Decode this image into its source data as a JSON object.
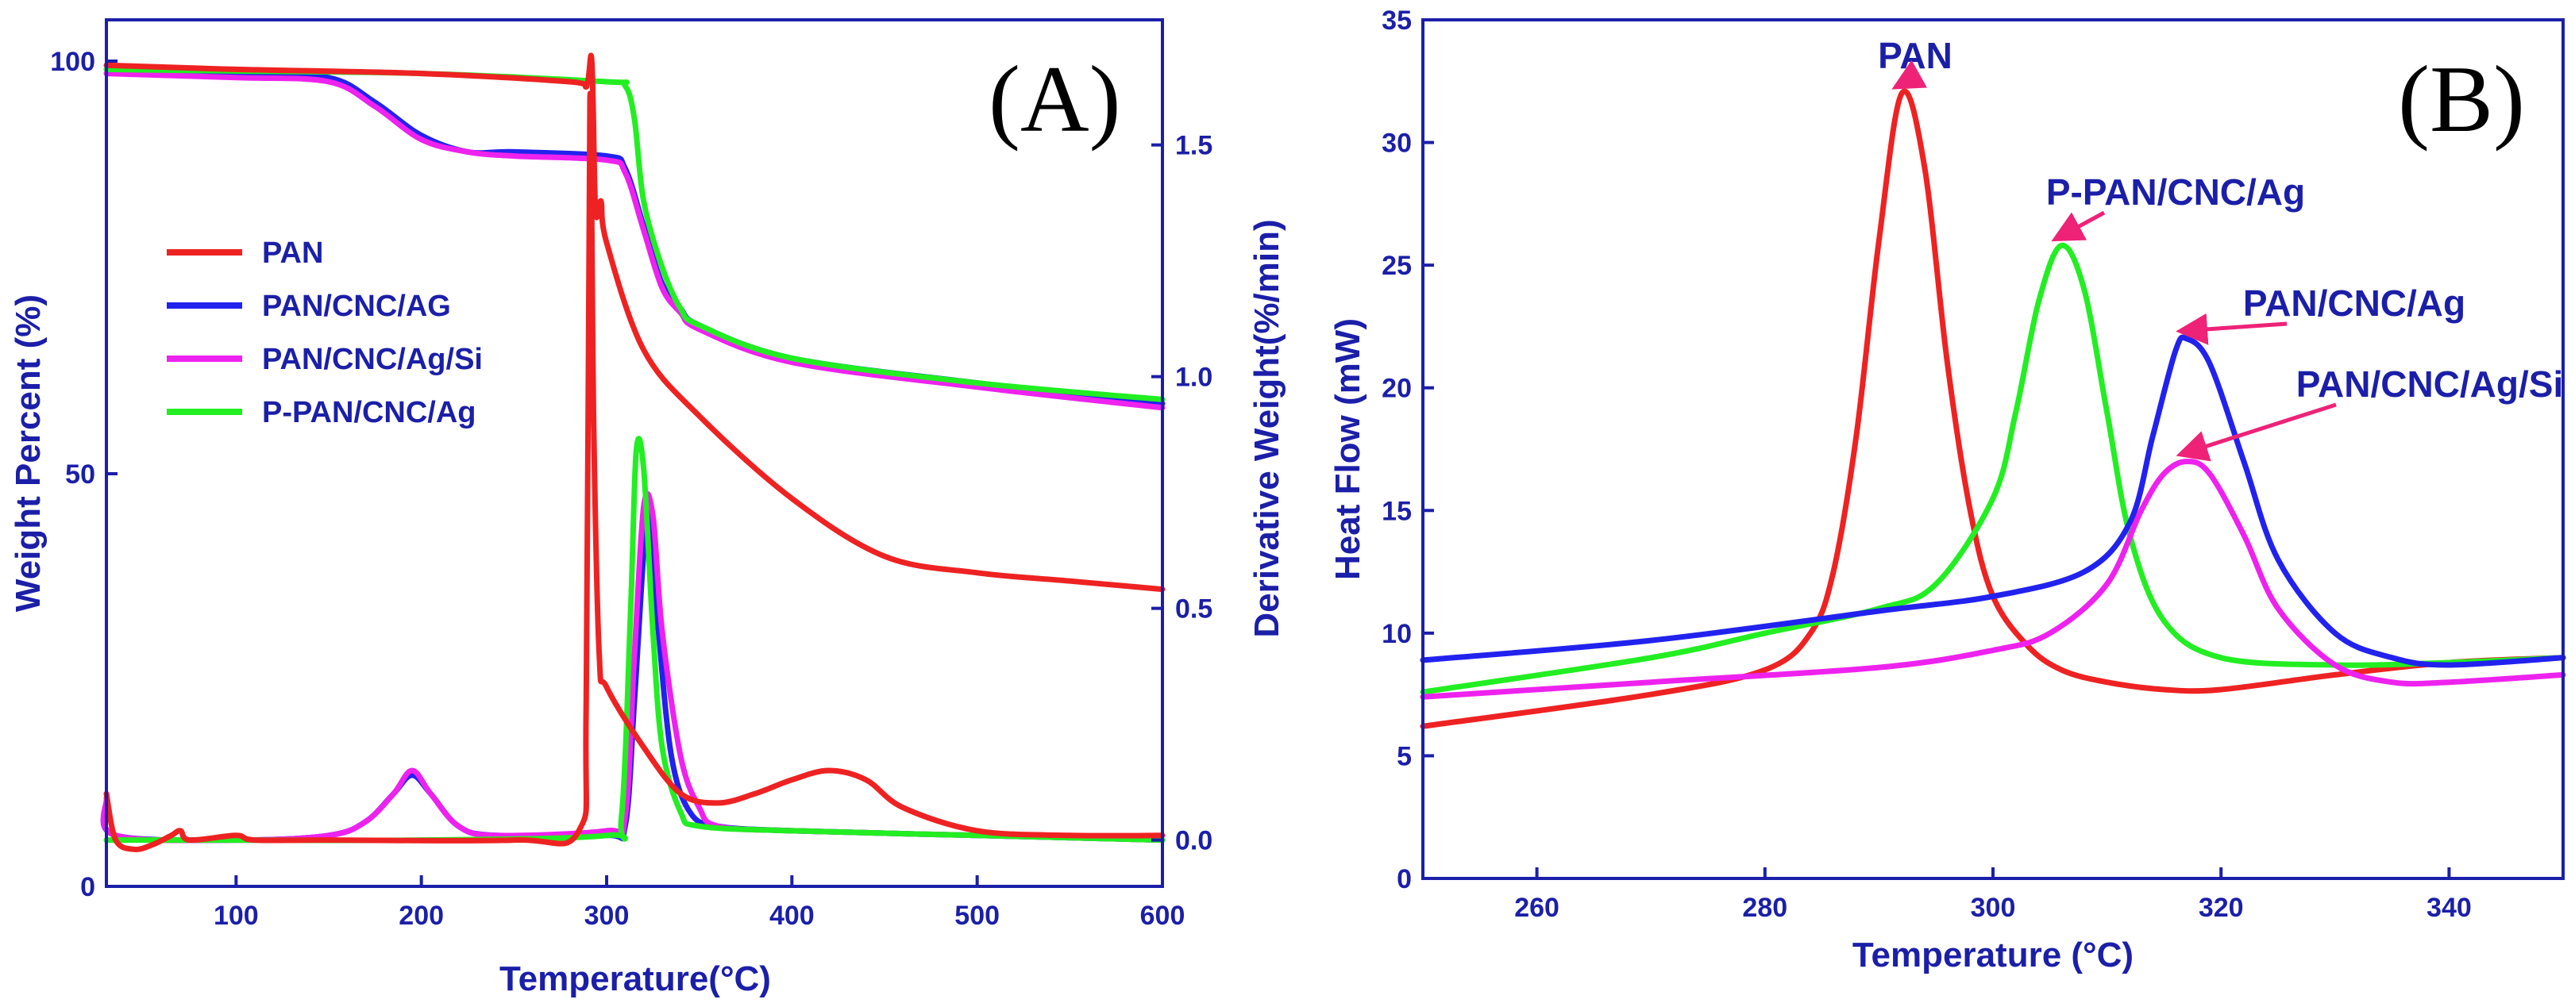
{
  "colors": {
    "PAN": "#ee2222",
    "PAN/CNC/AG": "#2222ee",
    "PAN/CNC/Ag": "#2222ee",
    "PAN/CNC/Ag/Si": "#ee22ee",
    "P-PAN/CNC/Ag": "#22ee22",
    "axis": "#1b1fa8",
    "arrow": "#ee2277"
  },
  "chart_data": [
    {
      "type": "line",
      "panel_label": "(A)",
      "xlabel": "Temperature(°C)",
      "ylabel": "Weight Percent (%)",
      "y2label": "Derivative Weight(%/min)",
      "xlim": [
        30,
        600
      ],
      "ylim": [
        0,
        105
      ],
      "y2lim": [
        -0.1,
        1.77
      ],
      "xticks": [
        {
          "v": 100,
          "l": "100"
        },
        {
          "v": 200,
          "l": "200"
        },
        {
          "v": 300,
          "l": "300"
        },
        {
          "v": 400,
          "l": "400"
        },
        {
          "v": 500,
          "l": "500"
        },
        {
          "v": 600,
          "l": "600"
        }
      ],
      "yticks": [
        {
          "v": 0,
          "l": "0"
        },
        {
          "v": 50,
          "l": "50"
        },
        {
          "v": 100,
          "l": "100"
        }
      ],
      "y2ticks": [
        {
          "v": 0.0,
          "l": "0.0"
        },
        {
          "v": 0.5,
          "l": "0.5"
        },
        {
          "v": 1.0,
          "l": "1.0"
        },
        {
          "v": 1.5,
          "l": "1.5"
        }
      ],
      "legend": [
        "PAN",
        "PAN/CNC/AG",
        "PAN/CNC/Ag/Si",
        "P-PAN/CNC/Ag"
      ],
      "weight_series": [
        {
          "name": "PAN",
          "x": [
            30,
            100,
            200,
            280,
            289,
            292,
            294,
            297,
            300,
            320,
            350,
            400,
            450,
            500,
            550,
            600
          ],
          "y": [
            99.5,
            99,
            98.5,
            97.5,
            97,
            100,
            82,
            83,
            78,
            65,
            57,
            47,
            40,
            38,
            37,
            36
          ]
        },
        {
          "name": "PAN/CNC/AG",
          "x": [
            30,
            100,
            150,
            175,
            200,
            225,
            250,
            300,
            310,
            320,
            330,
            340,
            350,
            400,
            500,
            600
          ],
          "y": [
            99,
            98.5,
            98,
            95,
            91,
            89,
            89,
            88.5,
            87,
            80,
            73,
            70,
            68,
            64,
            61,
            58.5
          ]
        },
        {
          "name": "PAN/CNC/Ag/Si",
          "x": [
            30,
            100,
            150,
            175,
            200,
            225,
            250,
            300,
            310,
            320,
            330,
            340,
            350,
            400,
            500,
            600
          ],
          "y": [
            98.5,
            98,
            97.5,
            94.5,
            90.5,
            89,
            88.5,
            88,
            86.5,
            79.5,
            72.5,
            69.5,
            67.5,
            63.5,
            60.5,
            58
          ]
        },
        {
          "name": "P-PAN/CNC/Ag",
          "x": [
            30,
            100,
            200,
            300,
            310,
            315,
            320,
            330,
            340,
            350,
            400,
            500,
            600
          ],
          "y": [
            99,
            98.8,
            98.5,
            97.5,
            97,
            93,
            83,
            75,
            70,
            68,
            64,
            61,
            59
          ]
        }
      ],
      "derivative_series": [
        {
          "name": "PAN",
          "x": [
            30,
            35,
            45,
            55,
            65,
            70,
            75,
            100,
            110,
            150,
            250,
            285,
            289,
            291,
            293,
            296,
            300,
            320,
            340,
            360,
            380,
            400,
            420,
            440,
            460,
            500,
            550,
            600
          ],
          "y": [
            0.1,
            0,
            -0.02,
            -0.01,
            0.01,
            0.02,
            0,
            0.01,
            0,
            0,
            0,
            0.02,
            0.3,
            1.6,
            0.9,
            0.4,
            0.33,
            0.2,
            0.1,
            0.08,
            0.1,
            0.13,
            0.15,
            0.13,
            0.07,
            0.02,
            0.01,
            0.01
          ]
        },
        {
          "name": "PAN/CNC/AG",
          "x": [
            30,
            35,
            100,
            150,
            170,
            185,
            195,
            205,
            220,
            240,
            300,
            310,
            315,
            320,
            323,
            328,
            335,
            345,
            360,
            400,
            500,
            600
          ],
          "y": [
            0.08,
            0.01,
            0,
            0.01,
            0.04,
            0.1,
            0.14,
            0.1,
            0.03,
            0.01,
            0.01,
            0.03,
            0.3,
            0.62,
            0.7,
            0.45,
            0.18,
            0.06,
            0.03,
            0.02,
            0.01,
            0
          ]
        },
        {
          "name": "PAN/CNC/Ag/Si",
          "x": [
            30,
            35,
            100,
            150,
            170,
            185,
            195,
            205,
            220,
            240,
            300,
            310,
            315,
            320,
            325,
            330,
            340,
            350,
            360,
            400,
            500,
            600
          ],
          "y": [
            0.09,
            0.01,
            0,
            0.01,
            0.04,
            0.1,
            0.15,
            0.1,
            0.03,
            0.01,
            0.02,
            0.05,
            0.4,
            0.72,
            0.7,
            0.45,
            0.18,
            0.07,
            0.03,
            0.02,
            0.01,
            0
          ]
        },
        {
          "name": "P-PAN/CNC/Ag",
          "x": [
            30,
            100,
            200,
            300,
            308,
            313,
            316,
            320,
            325,
            330,
            340,
            350,
            400,
            500,
            600
          ],
          "y": [
            0,
            0,
            0,
            0.01,
            0.05,
            0.5,
            0.84,
            0.8,
            0.45,
            0.2,
            0.06,
            0.03,
            0.02,
            0.01,
            0
          ]
        }
      ]
    },
    {
      "type": "line",
      "panel_label": "(B)",
      "xlabel": "Temperature (°C)",
      "ylabel": "Heat Flow (mW)",
      "xlim": [
        250,
        350
      ],
      "ylim": [
        0,
        35
      ],
      "xticks": [
        {
          "v": 260,
          "l": "260"
        },
        {
          "v": 280,
          "l": "280"
        },
        {
          "v": 300,
          "l": "300"
        },
        {
          "v": 320,
          "l": "320"
        },
        {
          "v": 340,
          "l": "340"
        }
      ],
      "yticks": [
        {
          "v": 0,
          "l": "0"
        },
        {
          "v": 5,
          "l": "5"
        },
        {
          "v": 10,
          "l": "10"
        },
        {
          "v": 15,
          "l": "15"
        },
        {
          "v": 20,
          "l": "20"
        },
        {
          "v": 25,
          "l": "25"
        },
        {
          "v": 30,
          "l": "30"
        },
        {
          "v": 35,
          "l": "35"
        }
      ],
      "series": [
        {
          "name": "PAN",
          "x": [
            250,
            270,
            280,
            284,
            286,
            288,
            290,
            292,
            294,
            296,
            298,
            300,
            303,
            306,
            310,
            315,
            320,
            330,
            340,
            350
          ],
          "y": [
            6.2,
            7.5,
            8.5,
            10,
            12.5,
            18,
            26,
            32,
            29,
            21,
            15,
            11.5,
            9.5,
            8.5,
            8,
            7.7,
            7.7,
            8.3,
            8.8,
            9
          ]
        },
        {
          "name": "P-PAN/CNC/Ag",
          "x": [
            250,
            270,
            280,
            290,
            295,
            300,
            302,
            304,
            306,
            308,
            310,
            312,
            315,
            320,
            330,
            340,
            350
          ],
          "y": [
            7.6,
            9,
            10,
            11,
            12,
            15.5,
            19,
            23.5,
            25.8,
            24,
            19,
            14,
            10.5,
            9,
            8.7,
            8.8,
            9
          ]
        },
        {
          "name": "PAN/CNC/Ag",
          "x": [
            250,
            270,
            290,
            300,
            308,
            312,
            314,
            316,
            317,
            319,
            322,
            325,
            330,
            335,
            340,
            350
          ],
          "y": [
            8.9,
            9.7,
            10.9,
            11.5,
            12.5,
            14.5,
            18,
            21.5,
            22,
            21,
            17,
            13,
            10,
            9,
            8.7,
            9
          ]
        },
        {
          "name": "PAN/CNC/Ag/Si",
          "x": [
            250,
            270,
            290,
            300,
            305,
            310,
            313,
            315,
            317,
            319,
            322,
            325,
            330,
            335,
            340,
            350
          ],
          "y": [
            7.4,
            8,
            8.6,
            9.3,
            10,
            12,
            15,
            16.5,
            17,
            16.5,
            14,
            11,
            8.7,
            8,
            8,
            8.3
          ]
        }
      ],
      "annotations": [
        {
          "label": "PAN",
          "target": [
            292,
            32
          ]
        },
        {
          "label": "P-PAN/CNC/Ag",
          "target": [
            306,
            25.8
          ]
        },
        {
          "label": "PAN/CNC/Ag",
          "target": [
            317,
            22
          ]
        },
        {
          "label": "PAN/CNC/Ag/Si",
          "target": [
            317,
            17
          ]
        }
      ]
    }
  ]
}
